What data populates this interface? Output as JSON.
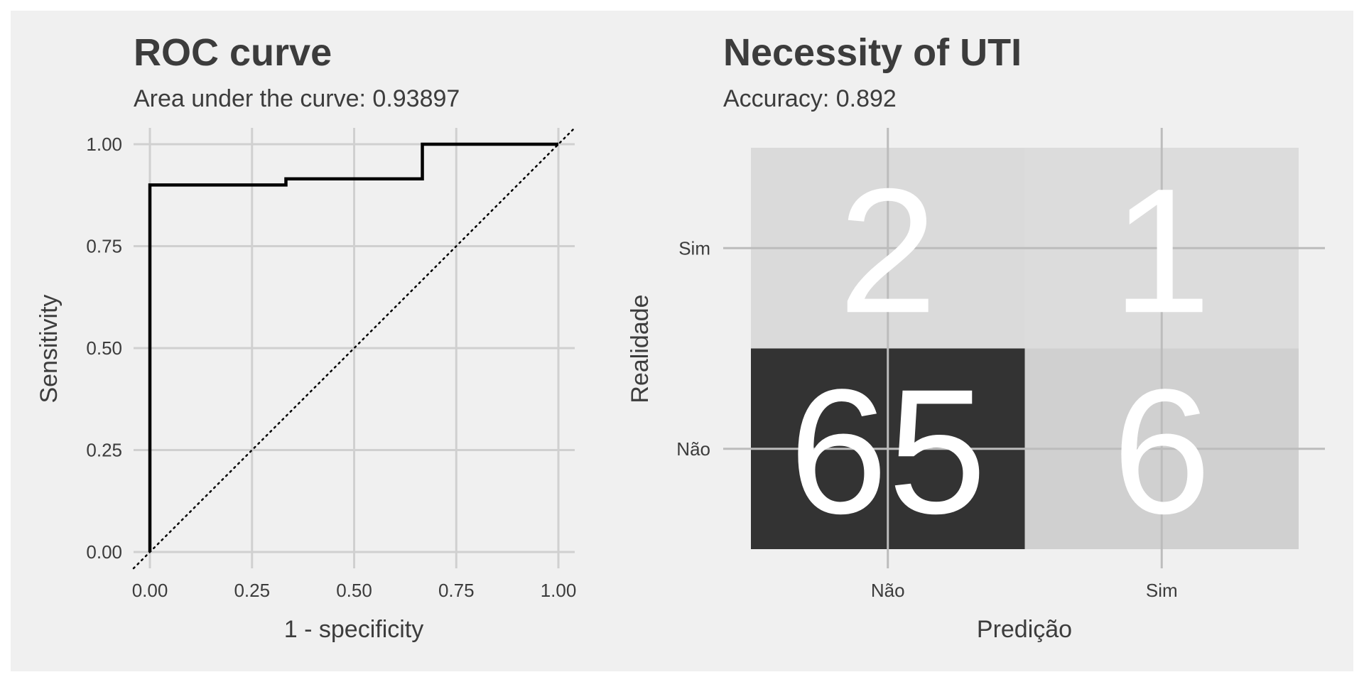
{
  "chart_data": [
    {
      "type": "line",
      "title": "ROC curve",
      "subtitle": "Area under the curve: 0.93897",
      "xlabel": "1 - specificity",
      "ylabel": "Sensitivity",
      "xlim": [
        -0.04,
        1.04
      ],
      "ylim": [
        -0.04,
        1.04
      ],
      "x_ticks": [
        "0.00",
        "0.25",
        "0.50",
        "0.75",
        "1.00"
      ],
      "y_ticks": [
        "0.00",
        "0.25",
        "0.50",
        "0.75",
        "1.00"
      ],
      "grid": true,
      "series": [
        {
          "step": true,
          "color": "#000000",
          "x": [
            0,
            0,
            0.333,
            0.333,
            0.667,
            0.667,
            1
          ],
          "y": [
            0,
            0.9,
            0.9,
            0.915,
            0.915,
            1,
            1
          ]
        }
      ],
      "reference_line": {
        "style": "dotted",
        "color": "#000000",
        "slope": 1,
        "intercept": 0
      }
    },
    {
      "type": "heatmap",
      "title": "Necessity of UTI",
      "subtitle": "Accuracy: 0.892",
      "xlabel": "Predição",
      "ylabel": "Realidade",
      "x_categories": [
        "Não",
        "Sim"
      ],
      "y_categories": [
        "Não",
        "Sim"
      ],
      "grid": true,
      "cells": [
        {
          "x": "Não",
          "y": "Sim",
          "value": 2,
          "color": "#dadada"
        },
        {
          "x": "Sim",
          "y": "Sim",
          "value": 1,
          "color": "#dcdcdc"
        },
        {
          "x": "Não",
          "y": "Não",
          "value": 65,
          "color": "#333333"
        },
        {
          "x": "Sim",
          "y": "Não",
          "value": 6,
          "color": "#d0d0d0"
        }
      ]
    }
  ]
}
